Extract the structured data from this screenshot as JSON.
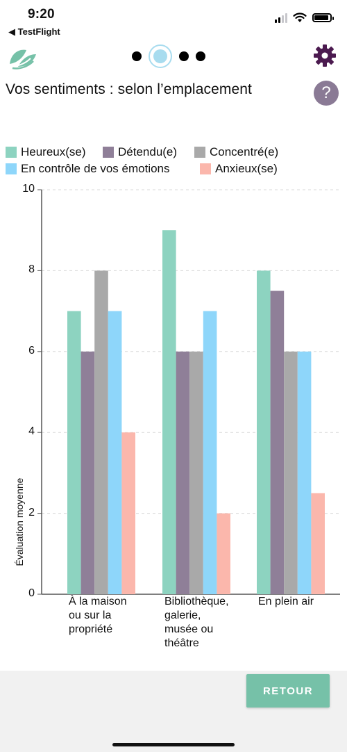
{
  "status_bar": {
    "time": "9:20",
    "back_app": "◀ TestFlight"
  },
  "header": {
    "title": "Vos sentiments : selon l’emplacement",
    "help_label": "?",
    "pager": {
      "count": 4,
      "active_index": 1
    },
    "accent_color": "#76c1a8"
  },
  "chart_data": {
    "type": "bar",
    "categories": [
      [
        "À la maison",
        "ou sur la",
        "propriété"
      ],
      [
        "Bibliothèque,",
        "galerie,",
        "musée ou",
        "théâtre"
      ],
      [
        "En plein air"
      ]
    ],
    "series": [
      {
        "name": "Heureux(se)",
        "color": "#8dd3c0",
        "values": [
          7,
          9,
          8
        ]
      },
      {
        "name": "Détendu(e)",
        "color": "#8f7f98",
        "values": [
          6,
          6,
          7.5
        ]
      },
      {
        "name": "Concentré(e)",
        "color": "#a9a9a9",
        "values": [
          8,
          6,
          6
        ]
      },
      {
        "name": "En contrôle de vos émotions",
        "color": "#8ed6fa",
        "values": [
          7,
          7,
          6
        ]
      },
      {
        "name": "Anxieux(se)",
        "color": "#fbb7ac",
        "values": [
          4,
          2,
          2.5
        ]
      }
    ],
    "ylabel": "Évaluation moyenne",
    "yticks": [
      0,
      2,
      4,
      6,
      8,
      10
    ],
    "ylim": [
      0,
      10
    ],
    "grid": true,
    "legend_position": "top"
  },
  "footer": {
    "retour_label": "RETOUR"
  }
}
